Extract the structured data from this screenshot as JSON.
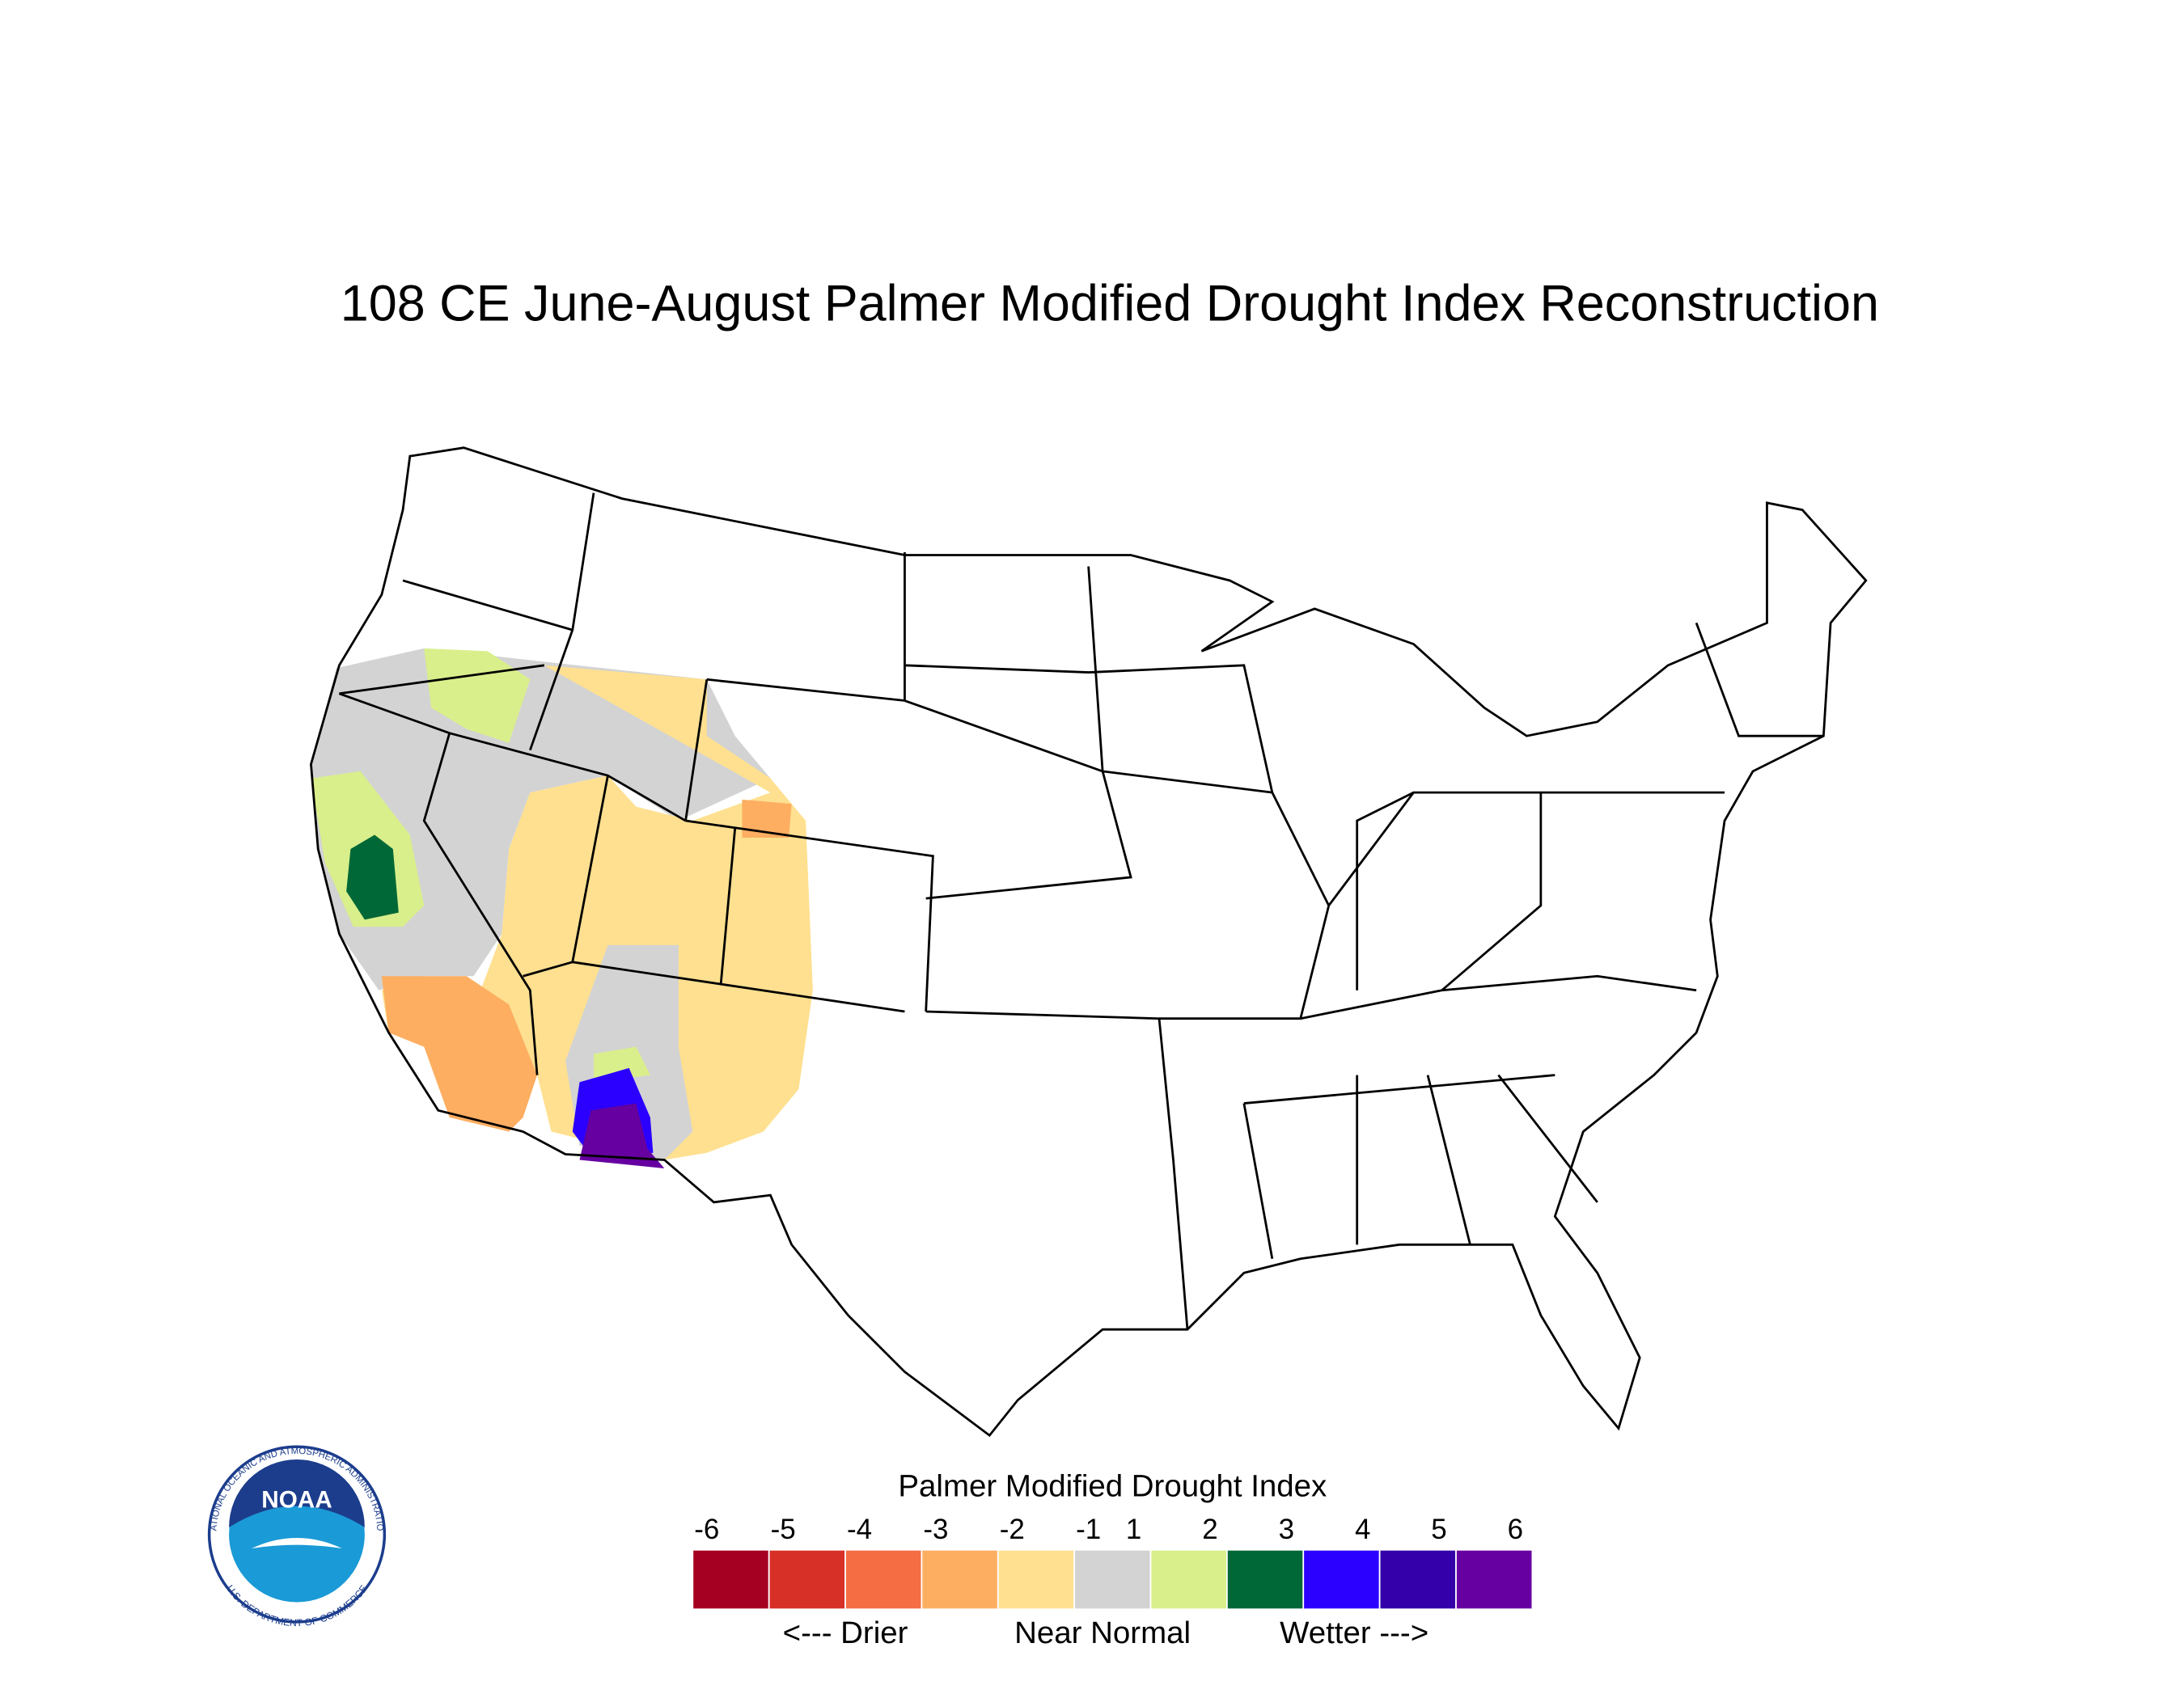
{
  "title": "108 CE  June-August  Palmer Modified Drought Index Reconstruction",
  "legend": {
    "title": "Palmer Modified Drought Index",
    "ticks": [
      -6,
      -5,
      -4,
      -3,
      -2,
      -1,
      1,
      2,
      3,
      4,
      5,
      6
    ],
    "colors": [
      "#a50021",
      "#d73027",
      "#f46d43",
      "#fdae61",
      "#fee090",
      "#d3d3d3",
      "#d9ef8b",
      "#006837",
      "#2b00ff",
      "#3300aa",
      "#6600a0"
    ],
    "labels": [
      "<--- Drier",
      "Near Normal",
      "Wetter --->"
    ]
  },
  "logo": {
    "name": "NOAA",
    "ring_top": "NATIONAL OCEANIC AND ATMOSPHERIC ADMINISTRATION",
    "ring_bottom": "U.S. DEPARTMENT OF COMMERCE"
  }
}
